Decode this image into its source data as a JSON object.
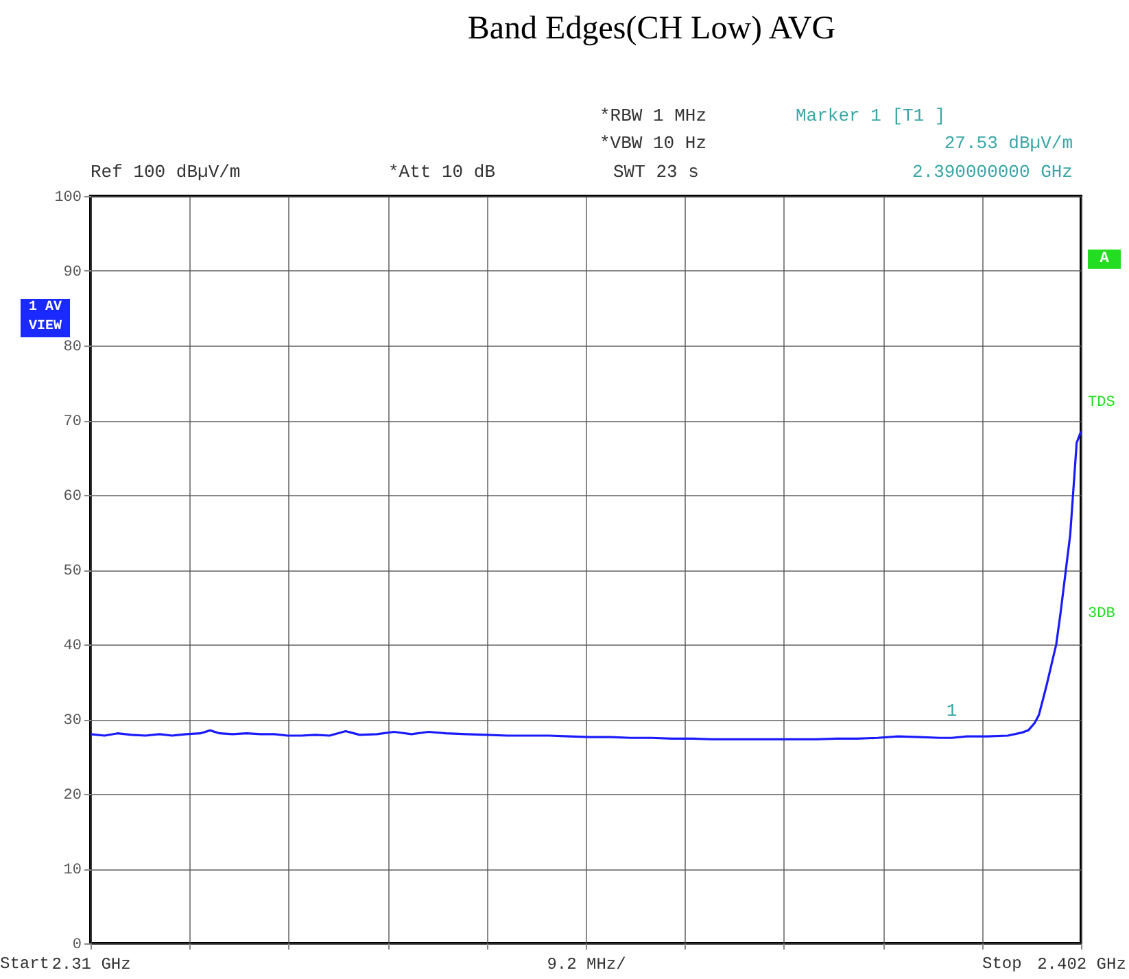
{
  "chart_data": {
    "type": "line",
    "title": "Band Edges(CH Low) AVG",
    "x": [
      2.31,
      2.3113,
      2.3125,
      2.3138,
      2.3151,
      2.3164,
      2.3176,
      2.3189,
      2.3202,
      2.3211,
      2.322,
      2.3232,
      2.3245,
      2.3258,
      2.3271,
      2.3283,
      2.3296,
      2.3309,
      2.3322,
      2.3337,
      2.335,
      2.3366,
      2.3382,
      2.3398,
      2.3414,
      2.343,
      2.3449,
      2.3468,
      2.3487,
      2.3506,
      2.3526,
      2.3545,
      2.3564,
      2.3583,
      2.3602,
      2.3621,
      2.364,
      2.3659,
      2.3678,
      2.3698,
      2.3717,
      2.3736,
      2.3755,
      2.3774,
      2.3793,
      2.3812,
      2.3831,
      2.385,
      2.387,
      2.3889,
      2.39,
      2.3914,
      2.3933,
      2.3952,
      2.3965,
      2.3971,
      2.3977,
      2.3981,
      2.3988,
      2.3997,
      2.4001,
      2.401,
      2.4016,
      2.402
    ],
    "series": [
      {
        "color": "#1a1aff",
        "values": [
          28.0,
          27.8,
          28.1,
          27.9,
          27.8,
          28.0,
          27.8,
          28.0,
          28.1,
          28.5,
          28.1,
          28.0,
          28.1,
          28.0,
          28.0,
          27.8,
          27.8,
          27.9,
          27.8,
          28.4,
          27.9,
          28.0,
          28.3,
          28.0,
          28.3,
          28.1,
          28.0,
          27.9,
          27.8,
          27.8,
          27.8,
          27.7,
          27.6,
          27.6,
          27.5,
          27.5,
          27.4,
          27.4,
          27.3,
          27.3,
          27.3,
          27.3,
          27.3,
          27.3,
          27.4,
          27.4,
          27.5,
          27.7,
          27.6,
          27.5,
          27.5,
          27.7,
          27.7,
          27.8,
          28.2,
          28.5,
          29.5,
          30.6,
          34.5,
          40.0,
          44.2,
          54.7,
          67.0,
          68.5
        ]
      }
    ],
    "xlim": [
      2.31,
      2.402
    ],
    "xticks": [
      {
        "value": 2.31,
        "label": "2.31 GHz"
      },
      {
        "value": 2.3192,
        "label": null
      },
      {
        "value": 2.3284,
        "label": null
      },
      {
        "value": 2.3376,
        "label": null
      },
      {
        "value": 2.3468,
        "label": null
      },
      {
        "value": 2.356,
        "label": null
      },
      {
        "value": 2.3652,
        "label": null
      },
      {
        "value": 2.3744,
        "label": null
      },
      {
        "value": 2.3836,
        "label": null
      },
      {
        "value": 2.3928,
        "label": null
      },
      {
        "value": 2.402,
        "label": "2.402 GHz"
      }
    ],
    "ylim": [
      0,
      100
    ],
    "yticks": [
      0,
      10,
      20,
      30,
      40,
      50,
      60,
      70,
      80,
      90,
      100
    ],
    "xlabel": "9.2 MHz/",
    "grid": true,
    "line_style": "solid",
    "marker": "none",
    "annotations": [
      "Ref 100 dBµV/m",
      "*Att 10 dB",
      "*RBW 1 MHz",
      "*VBW 10 Hz",
      "SWT 23 s",
      "Marker 1 [T1 ]",
      "27.53 dBµV/m",
      "2.390000000 GHz",
      "1 AV VIEW",
      "A",
      "TDS",
      "3DB",
      "Start",
      "Stop",
      {
        "text": "1",
        "x": 2.39,
        "y": 27.53
      }
    ]
  }
}
